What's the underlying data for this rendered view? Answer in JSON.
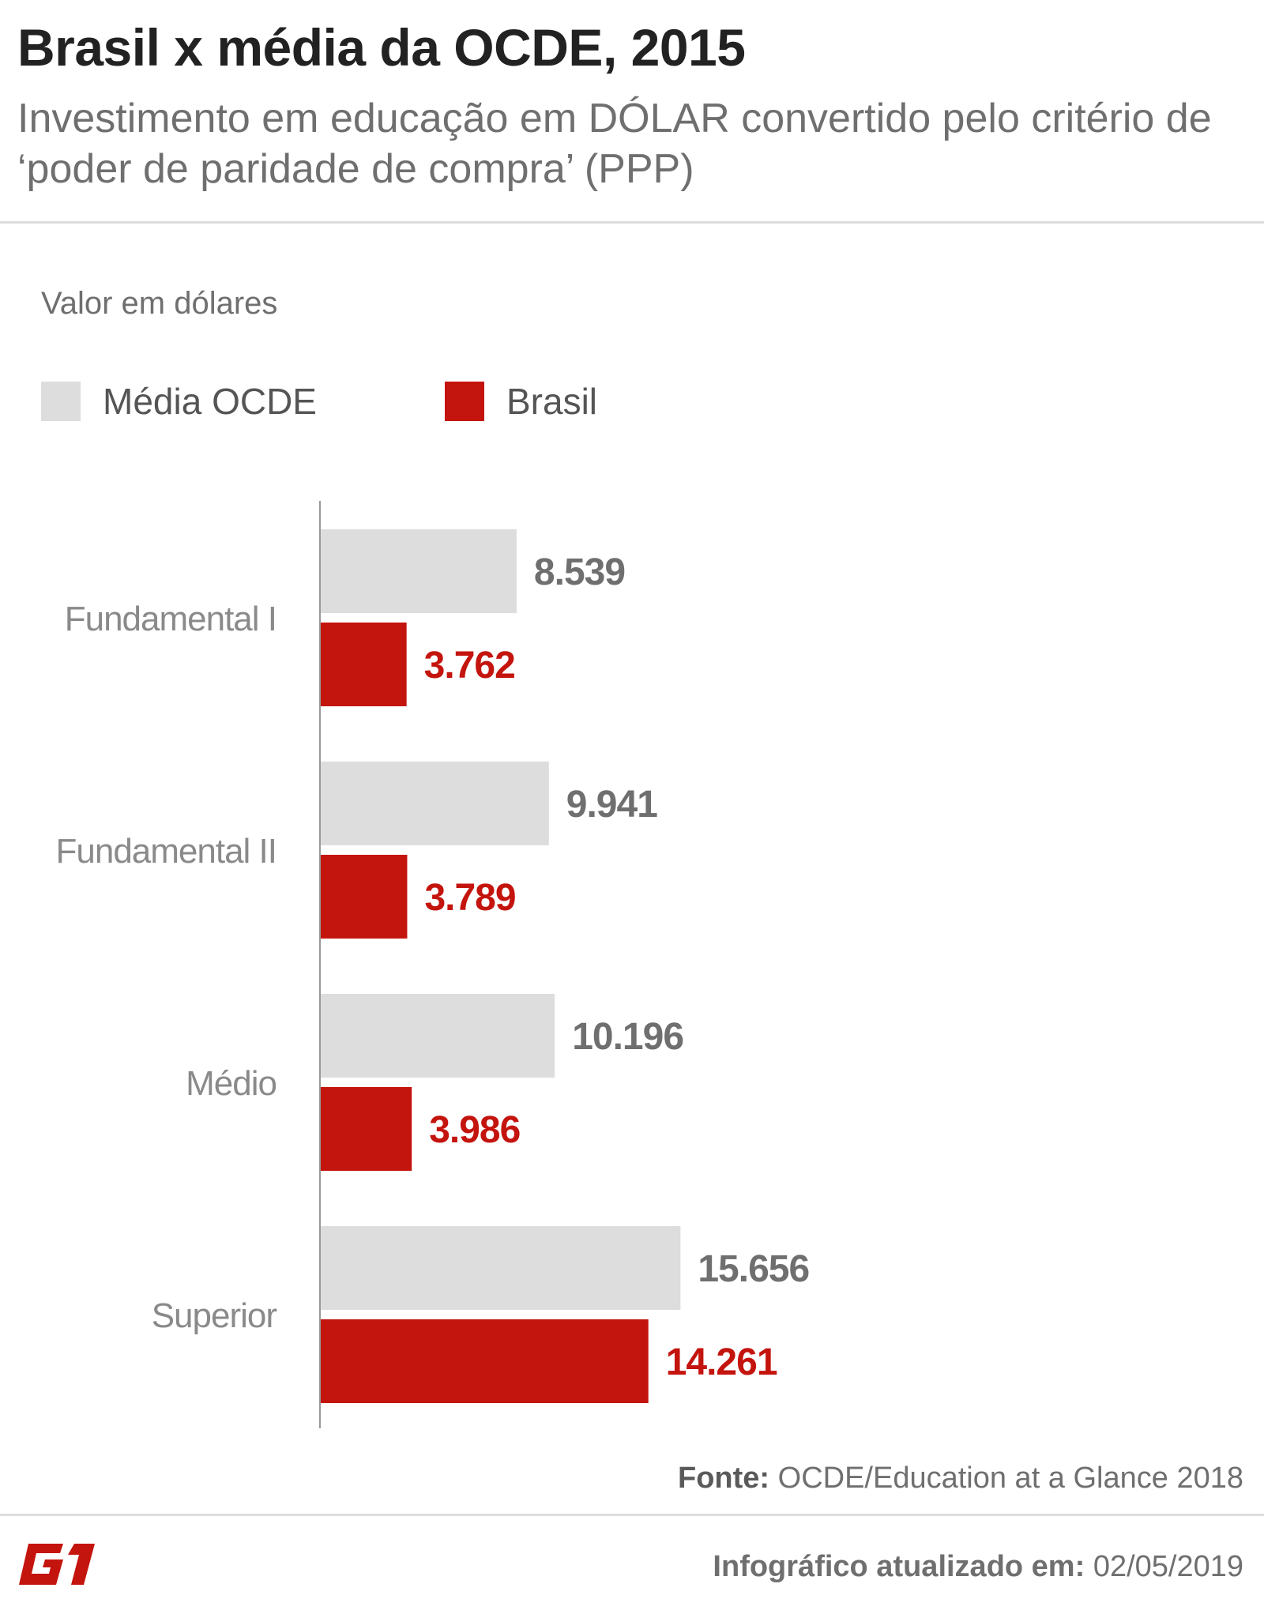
{
  "header": {
    "title": "Brasil x média da OCDE, 2015",
    "subtitle": "Investimento em educação em DÓLAR convertido pelo critério de ‘poder de paridade de compra’ (PPP)"
  },
  "axis_caption": "Valor em dólares",
  "legend": [
    {
      "label": "Média OCDE",
      "color": "#dddddd"
    },
    {
      "label": "Brasil",
      "color": "#c4140e"
    }
  ],
  "chart_data": {
    "type": "bar",
    "orientation": "horizontal",
    "title": "Brasil x média da OCDE, 2015",
    "subtitle": "Investimento em educação em DÓLAR convertido pelo critério de ‘poder de paridade de compra’ (PPP)",
    "xlabel": "Valor em dólares",
    "ylabel": "",
    "categories": [
      "Fundamental I",
      "Fundamental II",
      "Médio",
      "Superior"
    ],
    "series": [
      {
        "name": "Média OCDE",
        "values": [
          8539,
          9941,
          10196,
          15656
        ],
        "labels": [
          "8.539",
          "9.941",
          "10.196",
          "15.656"
        ],
        "color": "#dddddd",
        "label_color": "#6f6f6f"
      },
      {
        "name": "Brasil",
        "values": [
          3762,
          3789,
          3986,
          14261
        ],
        "labels": [
          "3.762",
          "3.789",
          "3.986",
          "14.261"
        ],
        "color": "#c4140e",
        "label_color": "#c4140e"
      }
    ],
    "xlim": [
      0,
      20000
    ],
    "grid": false,
    "legend_position": "top-left"
  },
  "footer": {
    "source_label": "Fonte:",
    "source_text": "OCDE/Education at a Glance 2018",
    "logo_text": "G1",
    "updated_label": "Infográfico atualizado em:",
    "updated_date": "02/05/2019"
  }
}
